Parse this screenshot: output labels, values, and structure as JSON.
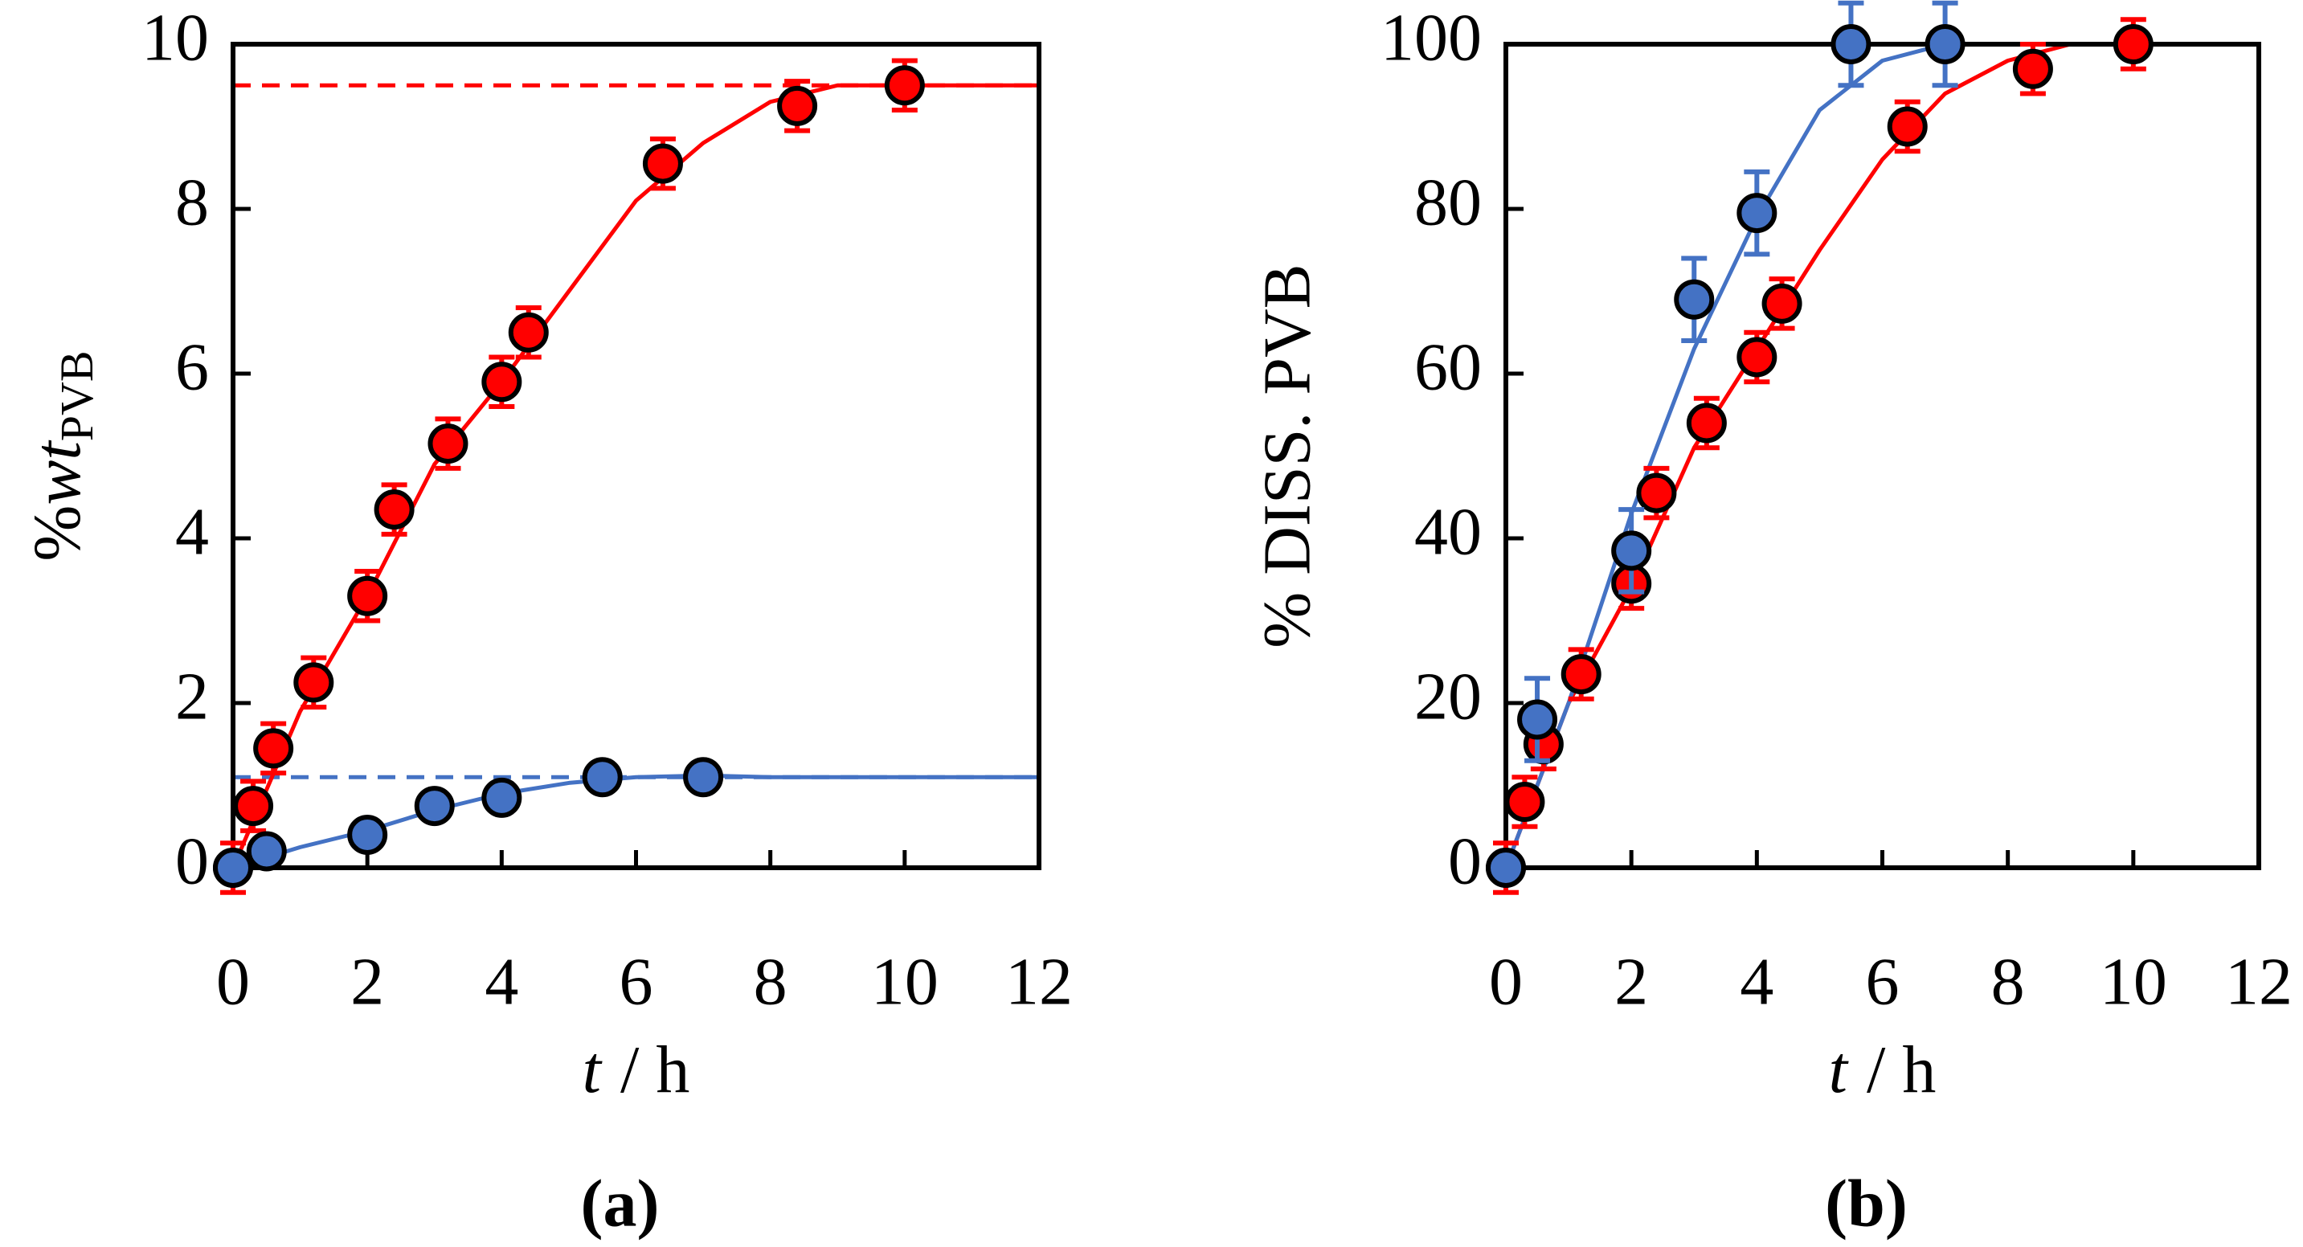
{
  "chart_data": [
    {
      "type": "scatter",
      "panel_label": "(a)",
      "xlabel": {
        "var": "t",
        "unit": "/ h"
      },
      "ylabel": {
        "prefix": "%",
        "var": "wt",
        "sub": "PVB"
      },
      "xlim": [
        0,
        12
      ],
      "ylim": [
        0,
        10
      ],
      "xticks": [
        0,
        2,
        4,
        6,
        8,
        10,
        12
      ],
      "yticks": [
        0,
        2,
        4,
        6,
        8,
        10
      ],
      "series": [
        {
          "color": "#ff0000",
          "x": [
            0,
            0.3,
            0.6,
            1.2,
            2.0,
            2.4,
            3.2,
            4.0,
            4.4,
            6.4,
            8.4,
            10
          ],
          "values": [
            0,
            0.75,
            1.45,
            2.25,
            3.3,
            4.35,
            5.15,
            5.9,
            6.5,
            8.55,
            9.25,
            9.5
          ],
          "errors": [
            0.3,
            0.3,
            0.3,
            0.3,
            0.3,
            0.3,
            0.3,
            0.3,
            0.3,
            0.3,
            0.3,
            0.3
          ]
        },
        {
          "color": "#4472c4",
          "x": [
            0,
            0.5,
            2.0,
            3.0,
            4.0,
            5.5,
            7.0
          ],
          "values": [
            0,
            0.2,
            0.4,
            0.75,
            0.85,
            1.1,
            1.1
          ],
          "errors": [
            0.1,
            0.1,
            0.1,
            0.1,
            0.1,
            0.1,
            0.1
          ]
        }
      ],
      "fits": [
        {
          "color": "#ff0000",
          "x": [
            0,
            1,
            2,
            3,
            4,
            5,
            6,
            7,
            8,
            9,
            10,
            11,
            12
          ],
          "values": [
            0,
            1.9,
            3.3,
            4.9,
            5.9,
            7.0,
            8.1,
            8.8,
            9.3,
            9.5,
            9.5,
            9.5,
            9.5
          ]
        },
        {
          "color": "#4472c4",
          "x": [
            0,
            1,
            2,
            3,
            4,
            5,
            6,
            7,
            8,
            9,
            10,
            11,
            12
          ],
          "values": [
            0,
            0.25,
            0.45,
            0.7,
            0.9,
            1.03,
            1.1,
            1.12,
            1.1,
            1.1,
            1.1,
            1.1,
            1.1
          ]
        }
      ],
      "reference_lines": [
        {
          "color": "#ff0000",
          "value": 9.5
        },
        {
          "color": "#4472c4",
          "value": 1.1
        }
      ]
    },
    {
      "type": "scatter",
      "panel_label": "(b)",
      "xlabel": {
        "var": "t",
        "unit": "/ h"
      },
      "ylabel": "% DISS. PVB",
      "xlim": [
        0,
        12
      ],
      "ylim": [
        0,
        100
      ],
      "xticks": [
        0,
        2,
        4,
        6,
        8,
        10,
        12
      ],
      "yticks": [
        0,
        20,
        40,
        60,
        80,
        100
      ],
      "series": [
        {
          "color": "#ff0000",
          "x": [
            0,
            0.3,
            0.6,
            1.2,
            2.0,
            2.4,
            3.2,
            4.0,
            4.4,
            6.4,
            8.4,
            10
          ],
          "values": [
            0,
            8,
            15,
            23.5,
            34.5,
            45.5,
            54,
            62,
            68.5,
            90,
            97,
            100
          ],
          "errors": [
            3,
            3,
            3,
            3,
            3,
            3,
            3,
            3,
            3,
            3,
            3,
            3
          ]
        },
        {
          "color": "#4472c4",
          "x": [
            0,
            0.5,
            2.0,
            3.0,
            4.0,
            5.5,
            7.0
          ],
          "values": [
            0,
            18,
            38.5,
            69,
            79.5,
            100,
            100
          ],
          "errors": [
            0,
            5,
            5,
            5,
            5,
            5,
            5
          ]
        }
      ],
      "fits": [
        {
          "color": "#ff0000",
          "x": [
            0,
            1,
            2,
            3,
            4,
            5,
            6,
            7,
            8,
            9,
            10,
            11,
            12
          ],
          "values": [
            0,
            20,
            34,
            51,
            63,
            75,
            86,
            94,
            98,
            100,
            100,
            100,
            100
          ]
        },
        {
          "color": "#4472c4",
          "x": [
            0,
            1,
            2,
            3,
            4,
            5,
            6,
            7,
            8,
            9,
            10,
            11,
            12
          ],
          "values": [
            0,
            20,
            43,
            63,
            79,
            92,
            98,
            100,
            100,
            100,
            100,
            100,
            100
          ]
        }
      ]
    }
  ]
}
